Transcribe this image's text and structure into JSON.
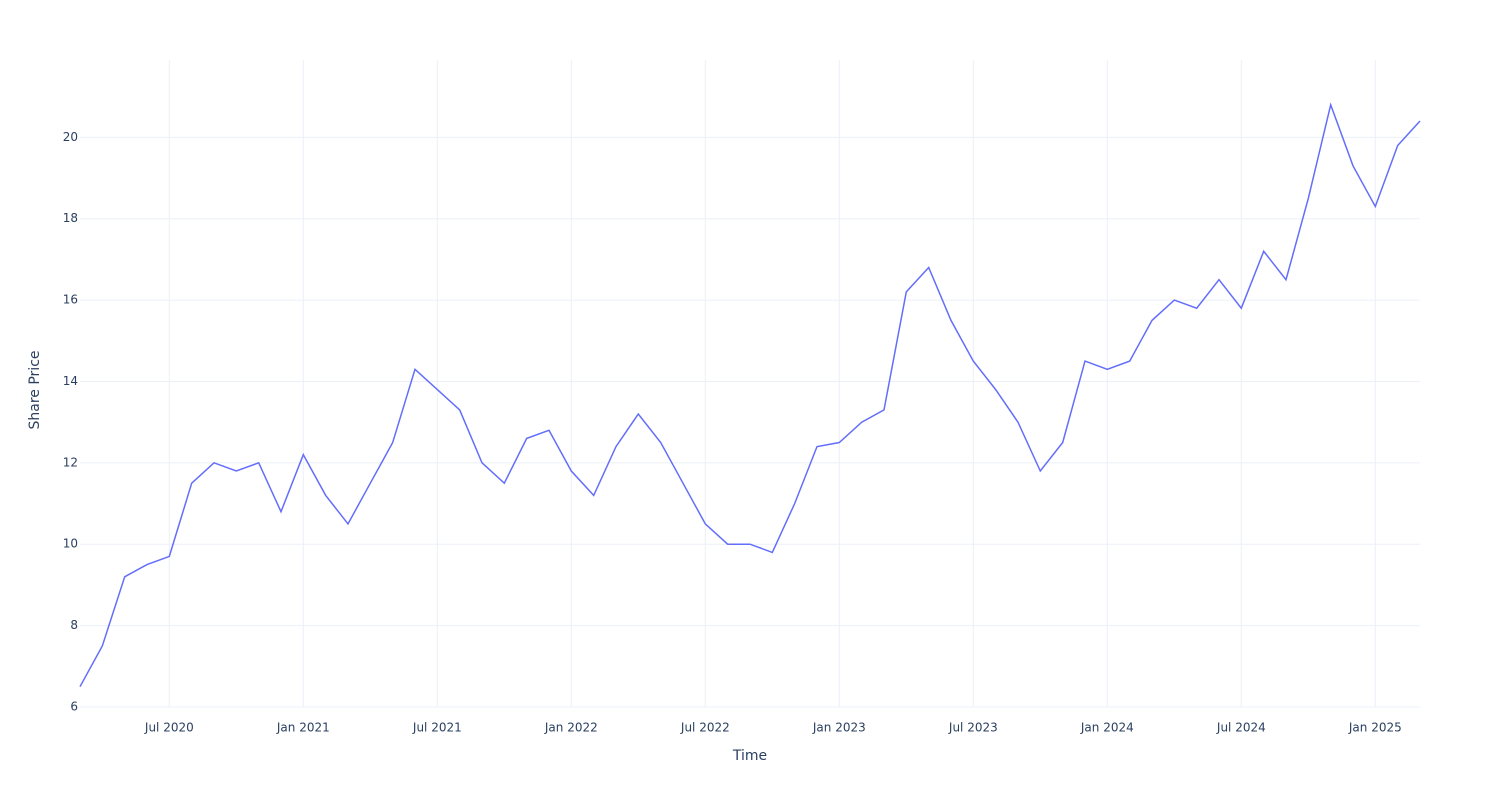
{
  "chart_data": {
    "type": "line",
    "x_title": "Time",
    "y_title": "Share Price",
    "x": [
      "2020-03",
      "2020-04",
      "2020-05",
      "2020-06",
      "2020-07",
      "2020-08",
      "2020-09",
      "2020-10",
      "2020-11",
      "2020-12",
      "2021-01",
      "2021-02",
      "2021-03",
      "2021-04",
      "2021-05",
      "2021-06",
      "2021-07",
      "2021-08",
      "2021-09",
      "2021-10",
      "2021-11",
      "2021-12",
      "2022-01",
      "2022-02",
      "2022-03",
      "2022-04",
      "2022-05",
      "2022-06",
      "2022-07",
      "2022-08",
      "2022-09",
      "2022-10",
      "2022-11",
      "2022-12",
      "2023-01",
      "2023-02",
      "2023-03",
      "2023-04",
      "2023-05",
      "2023-06",
      "2023-07",
      "2023-08",
      "2023-09",
      "2023-10",
      "2023-11",
      "2023-12",
      "2024-01",
      "2024-02",
      "2024-03",
      "2024-04",
      "2024-05",
      "2024-06",
      "2024-07",
      "2024-08",
      "2024-09",
      "2024-10",
      "2024-11",
      "2024-12",
      "2025-01",
      "2025-02",
      "2025-03"
    ],
    "series": [
      {
        "name": "Share Price",
        "color": "#636efa",
        "values": [
          6.5,
          7.5,
          9.2,
          9.5,
          9.7,
          11.5,
          12.0,
          11.8,
          12.0,
          10.8,
          12.2,
          11.2,
          10.5,
          11.5,
          12.5,
          14.3,
          13.8,
          13.3,
          12.0,
          11.5,
          12.6,
          12.8,
          11.8,
          11.2,
          12.4,
          13.2,
          12.5,
          11.5,
          10.5,
          10.0,
          10.0,
          9.8,
          11.0,
          12.4,
          12.5,
          13.0,
          13.3,
          16.2,
          16.8,
          15.5,
          14.5,
          13.8,
          13.0,
          11.8,
          12.5,
          14.5,
          14.3,
          14.5,
          15.5,
          16.0,
          15.8,
          16.5,
          15.8,
          17.2,
          16.5,
          18.5,
          20.8,
          19.3,
          18.3,
          19.8,
          20.4
        ]
      }
    ],
    "xlim": [
      "2020-03",
      "2025-03"
    ],
    "xticks": [
      {
        "value": "2020-07",
        "label": "Jul 2020"
      },
      {
        "value": "2021-01",
        "label": "Jan 2021"
      },
      {
        "value": "2021-07",
        "label": "Jul 2021"
      },
      {
        "value": "2022-01",
        "label": "Jan 2022"
      },
      {
        "value": "2022-07",
        "label": "Jul 2022"
      },
      {
        "value": "2023-01",
        "label": "Jan 2023"
      },
      {
        "value": "2023-07",
        "label": "Jul 2023"
      },
      {
        "value": "2024-01",
        "label": "Jan 2024"
      },
      {
        "value": "2024-07",
        "label": "Jul 2024"
      },
      {
        "value": "2025-01",
        "label": "Jan 2025"
      }
    ],
    "ylim": [
      6,
      21.9
    ],
    "yticks": [
      6,
      8,
      10,
      12,
      14,
      16,
      18,
      20
    ],
    "grid": true
  }
}
